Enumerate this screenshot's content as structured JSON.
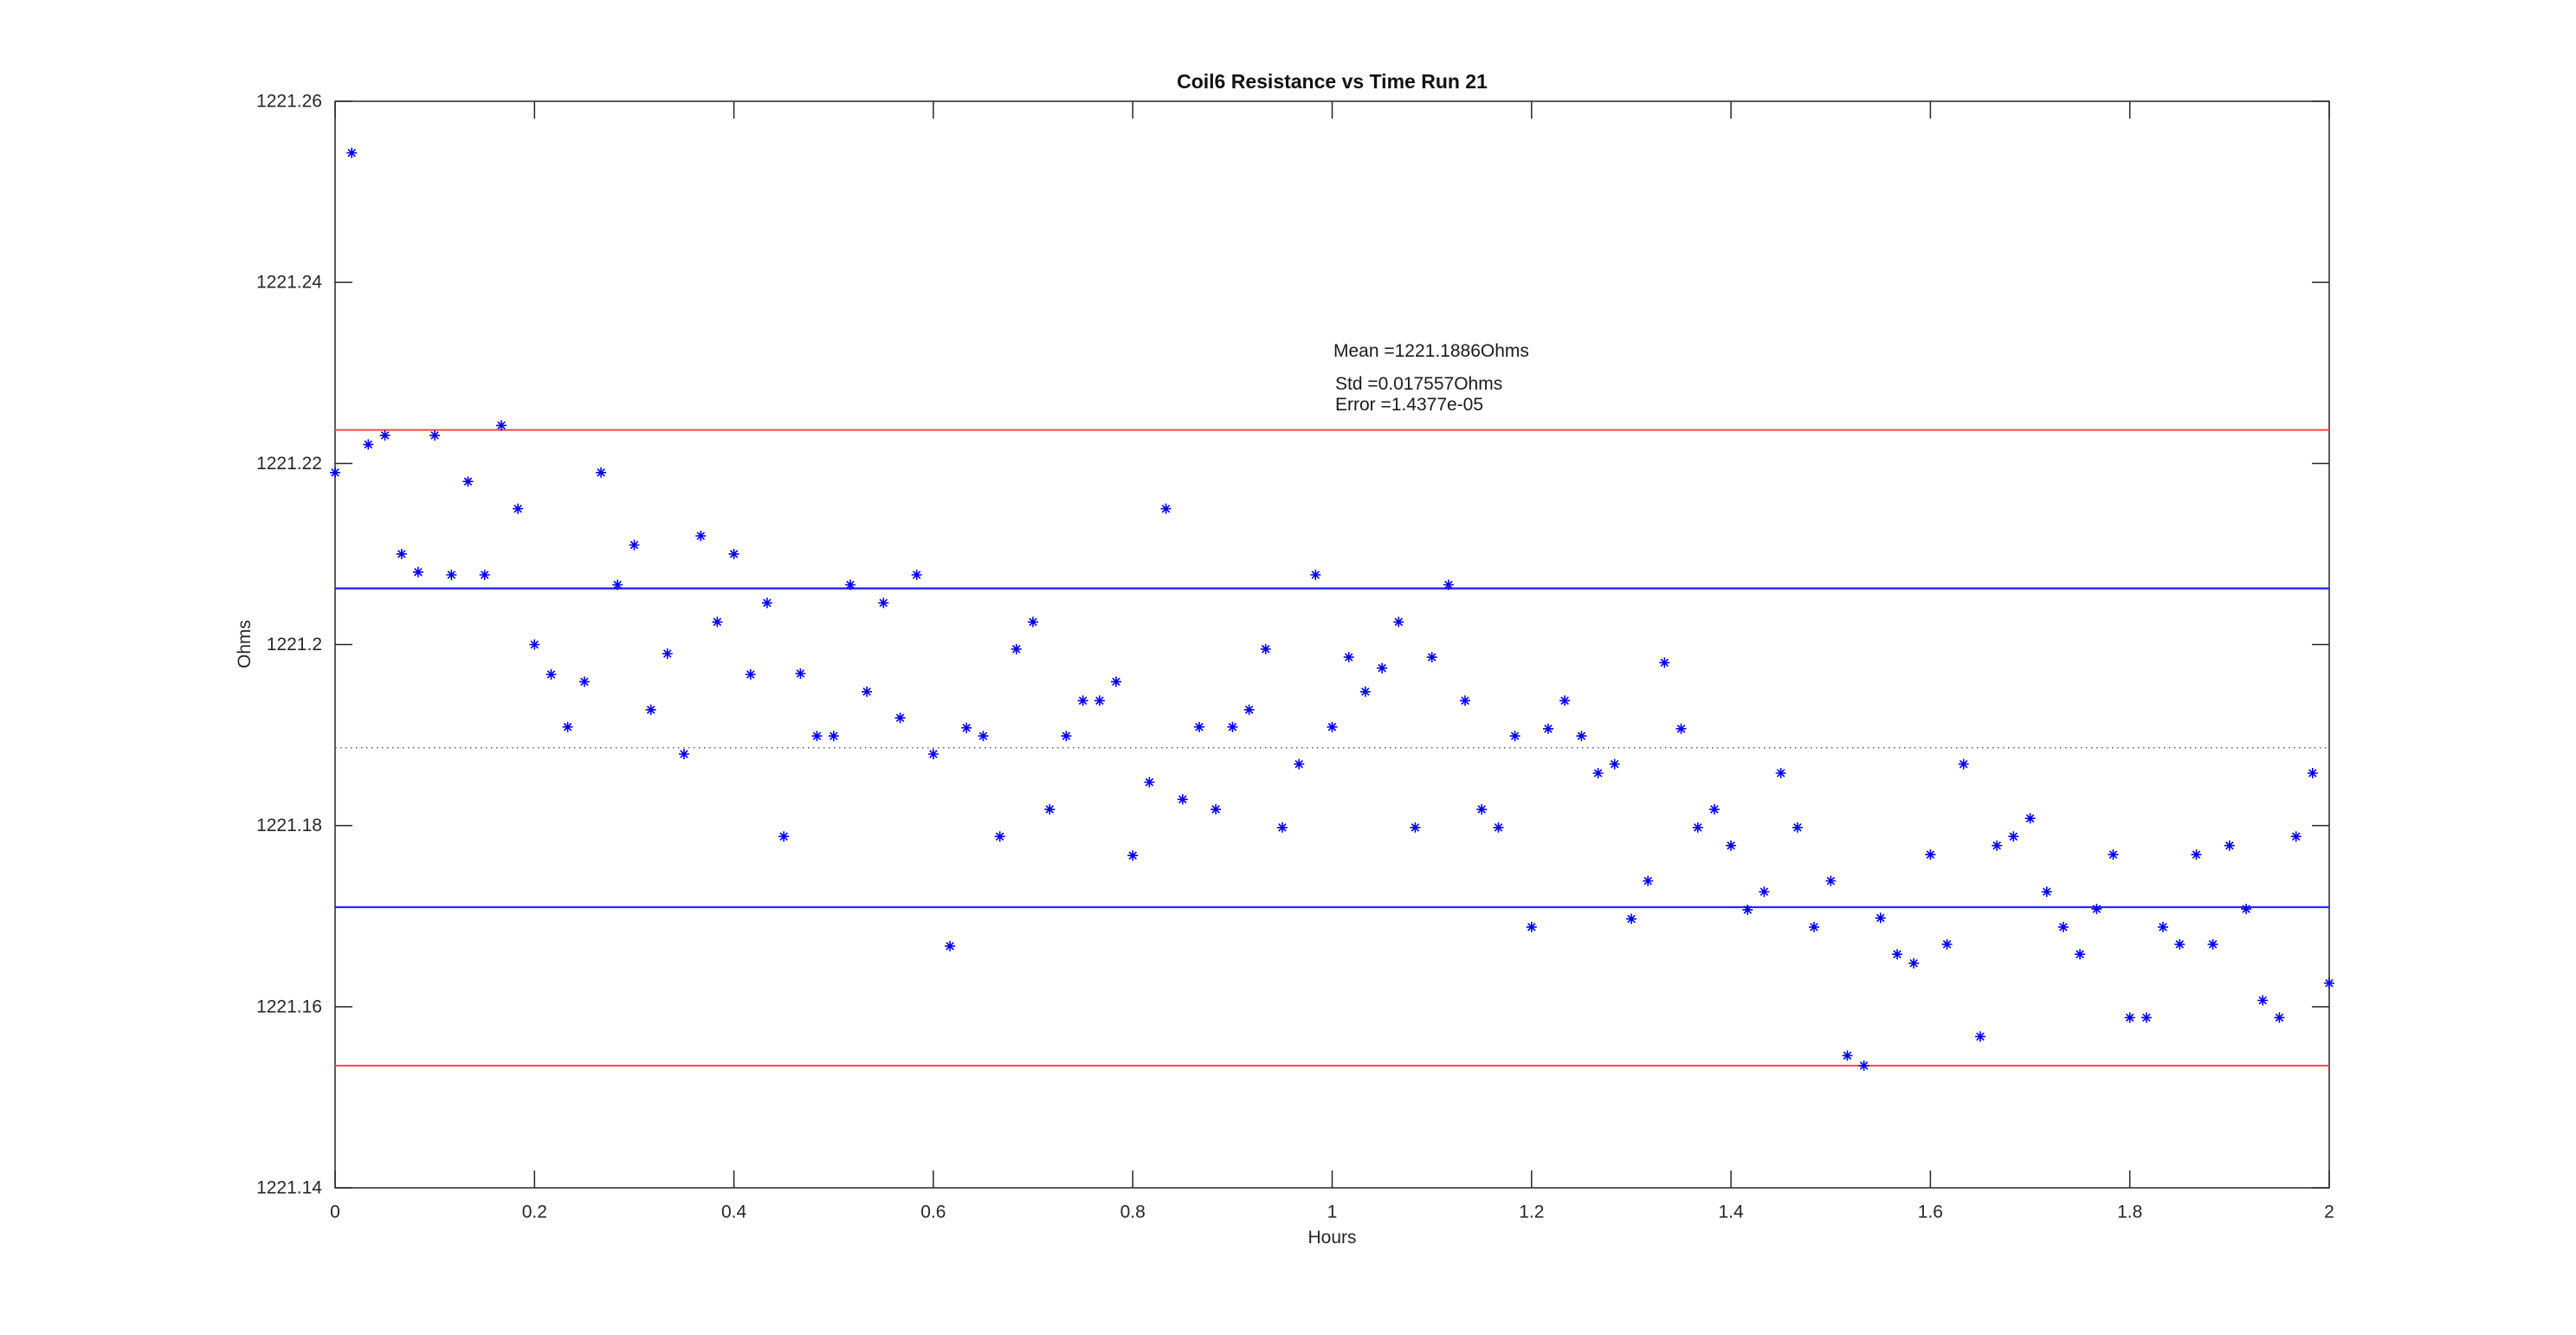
{
  "figure": {
    "background": "#ffffff"
  },
  "chart_data": {
    "type": "scatter",
    "title": "Coil6 Resistance vs Time Run 21",
    "xlabel": "Hours",
    "ylabel": "Ohms",
    "xlim": [
      0,
      2
    ],
    "ylim": [
      1221.14,
      1221.26
    ],
    "grid": false,
    "legend": "none",
    "marker": "asterisk",
    "x_tick_values": [
      0,
      0.2,
      0.4,
      0.6,
      0.8,
      1,
      1.2,
      1.4,
      1.6,
      1.8,
      2
    ],
    "x_tick_labels": [
      "0",
      "0.2",
      "0.4",
      "0.6",
      "0.8",
      "1",
      "1.2",
      "1.4",
      "1.6",
      "1.8",
      "2"
    ],
    "y_tick_values": [
      1221.14,
      1221.16,
      1221.18,
      1221.2,
      1221.22,
      1221.24,
      1221.26
    ],
    "y_tick_labels": [
      "1221.14",
      "1221.16",
      "1221.18",
      "1221.2",
      "1221.22",
      "1221.24",
      "1221.26"
    ],
    "colors": {
      "points": "#0000ee",
      "std_lines": "#1a1aff",
      "two_std_lines": "#ff4444",
      "mean_line": "#444444",
      "axis": "#262626"
    },
    "statistics": {
      "mean_ohms": 1221.1886,
      "std_ohms": 0.017557,
      "error": 1.4377e-05
    },
    "annotation": {
      "mean_label": "Mean =1221.1886Ohms",
      "std_label": "Std =0.017557Ohms",
      "error_label": "Error =1.4377e-05"
    },
    "reference_lines": [
      {
        "name": "mean",
        "value": 1221.1886,
        "style": "dotted",
        "color": "#444444",
        "width": 1.2
      },
      {
        "name": "mean-plus-std",
        "value": 1221.2062,
        "style": "solid",
        "color": "#1a1aff",
        "width": 2.2
      },
      {
        "name": "mean-minus-std",
        "value": 1221.171,
        "style": "solid",
        "color": "#1a1aff",
        "width": 2.2
      },
      {
        "name": "mean-plus-2std",
        "value": 1221.2237,
        "style": "solid",
        "color": "#ff4444",
        "width": 2.0
      },
      {
        "name": "mean-minus-2std",
        "value": 1221.1535,
        "style": "solid",
        "color": "#ff4444",
        "width": 2.0
      }
    ],
    "series": [
      {
        "name": "Coil6 resistance",
        "x": [
          0,
          0.0167,
          0.0333,
          0.05,
          0.0667,
          0.0833,
          0.1,
          0.1167,
          0.1333,
          0.15,
          0.1667,
          0.1833,
          0.2,
          0.2167,
          0.2333,
          0.25,
          0.2667,
          0.2833,
          0.3,
          0.3167,
          0.3333,
          0.35,
          0.3667,
          0.3833,
          0.4,
          0.4167,
          0.4333,
          0.45,
          0.4667,
          0.4833,
          0.5,
          0.5167,
          0.5333,
          0.55,
          0.5667,
          0.5833,
          0.6,
          0.6167,
          0.6333,
          0.65,
          0.6667,
          0.6833,
          0.7,
          0.7167,
          0.7333,
          0.75,
          0.7667,
          0.7833,
          0.8,
          0.8167,
          0.8333,
          0.85,
          0.8667,
          0.8833,
          0.9,
          0.9167,
          0.9333,
          0.95,
          0.9667,
          0.9833,
          1,
          1.0167,
          1.0333,
          1.05,
          1.0667,
          1.0833,
          1.1,
          1.1167,
          1.1333,
          1.15,
          1.1667,
          1.1833,
          1.2,
          1.2167,
          1.2333,
          1.25,
          1.2667,
          1.2833,
          1.3,
          1.3167,
          1.3333,
          1.35,
          1.3667,
          1.3833,
          1.4,
          1.4167,
          1.4333,
          1.45,
          1.4667,
          1.4833,
          1.5,
          1.5167,
          1.5333,
          1.55,
          1.5667,
          1.5833,
          1.6,
          1.6167,
          1.6333,
          1.65,
          1.6667,
          1.6833,
          1.7,
          1.7167,
          1.7333,
          1.75,
          1.7667,
          1.7833,
          1.8,
          1.8167,
          1.8333,
          1.85,
          1.8667,
          1.8833,
          1.9,
          1.9167,
          1.9333,
          1.95,
          1.9667,
          1.9833,
          2
        ],
        "y": [
          1221.219,
          1221.2543,
          1221.2221,
          1221.2231,
          1221.21,
          1221.208,
          1221.2231,
          1221.2077,
          1221.218,
          1221.2077,
          1221.2242,
          1221.215,
          1221.2,
          1221.1967,
          1221.1909,
          1221.1959,
          1221.219,
          1221.2066,
          1221.211,
          1221.1928,
          1221.199,
          1221.1879,
          1221.212,
          1221.2025,
          1221.21,
          1221.1967,
          1221.2046,
          1221.1788,
          1221.1968,
          1221.1899,
          1221.1899,
          1221.2066,
          1221.1948,
          1221.2046,
          1221.1919,
          1221.2077,
          1221.1879,
          1221.1667,
          1221.1908,
          1221.1899,
          1221.1788,
          1221.1995,
          1221.2025,
          1221.1818,
          1221.1899,
          1221.1938,
          1221.1938,
          1221.1959,
          1221.1767,
          1221.1848,
          1221.215,
          1221.1829,
          1221.1909,
          1221.1818,
          1221.1909,
          1221.1928,
          1221.1995,
          1221.1798,
          1221.1868,
          1221.2077,
          1221.1909,
          1221.1986,
          1221.1948,
          1221.1974,
          1221.2025,
          1221.1798,
          1221.1986,
          1221.2066,
          1221.1938,
          1221.1818,
          1221.1798,
          1221.1899,
          1221.1688,
          1221.1907,
          1221.1938,
          1221.1899,
          1221.1858,
          1221.1868,
          1221.1697,
          1221.1739,
          1221.198,
          1221.1907,
          1221.1798,
          1221.1818,
          1221.1778,
          1221.1707,
          1221.1727,
          1221.1858,
          1221.1798,
          1221.1688,
          1221.1739,
          1221.1546,
          1221.1535,
          1221.1698,
          1221.1658,
          1221.1648,
          1221.1768,
          1221.1669,
          1221.1868,
          1221.1567,
          1221.1778,
          1221.1788,
          1221.1808,
          1221.1727,
          1221.1688,
          1221.1658,
          1221.1708,
          1221.1768,
          1221.1588,
          1221.1588,
          1221.1688,
          1221.1669,
          1221.1768,
          1221.1669,
          1221.1778,
          1221.1708,
          1221.1607,
          1221.1588,
          1221.1788,
          1221.1858,
          1221.1626
        ]
      }
    ]
  }
}
